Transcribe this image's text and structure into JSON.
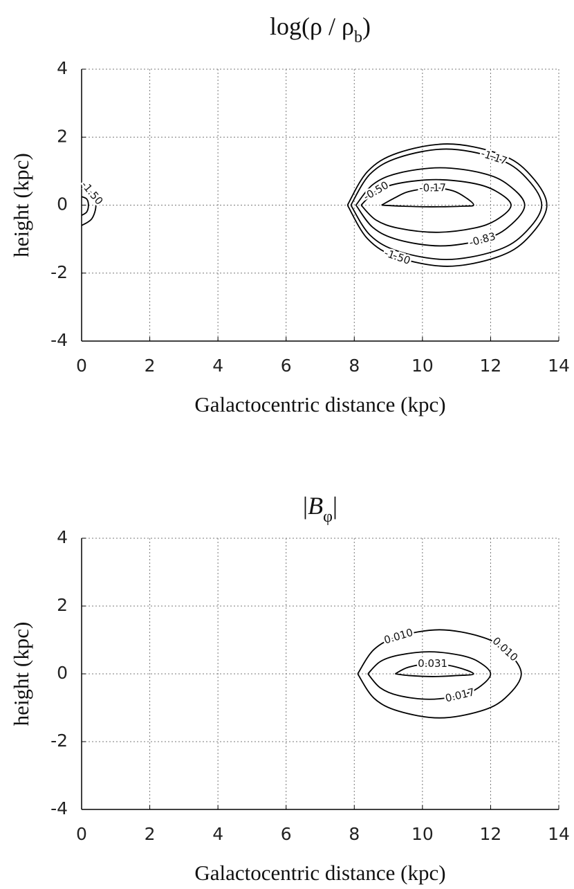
{
  "chart_data": [
    {
      "type": "contour",
      "title": [
        "log(ρ / ρ",
        "b",
        ")"
      ],
      "xlabel": "Galactocentric distance (kpc)",
      "ylabel": "height (kpc)",
      "xlim": [
        0,
        14
      ],
      "ylim": [
        -4,
        4
      ],
      "xticks": [
        0,
        2,
        4,
        6,
        8,
        10,
        12,
        14
      ],
      "yticks": [
        -4,
        -2,
        0,
        2,
        4
      ],
      "grid": true,
      "color": "#000000",
      "contours": [
        {
          "level": -1.5,
          "label": "-1.50",
          "x": [
            7.8,
            8.39,
            9.26,
            10.73,
            12.19,
            13.07,
            13.65,
            13.07,
            12.19,
            10.73,
            9.26,
            8.39,
            7.8
          ],
          "y": [
            0,
            0.99,
            1.53,
            1.8,
            1.53,
            0.99,
            0,
            -0.99,
            -1.53,
            -1.8,
            -1.53,
            -0.99,
            0
          ]
        },
        {
          "level": -1.17,
          "label": "-1.17",
          "x": [
            7.9,
            8.46,
            9.3,
            10.7,
            12.1,
            12.94,
            13.5,
            12.94,
            12.1,
            10.7,
            9.3,
            8.46,
            7.9
          ],
          "y": [
            0,
            0.91,
            1.4,
            1.65,
            1.4,
            0.91,
            0,
            -0.88,
            -1.36,
            -1.6,
            -1.36,
            -0.88,
            0
          ]
        },
        {
          "level": -0.83,
          "label": "-0.83",
          "x": [
            8.05,
            8.55,
            9.29,
            10.53,
            11.76,
            12.5,
            13.0,
            12.5,
            11.76,
            10.53,
            9.29,
            8.55,
            8.05
          ],
          "y": [
            0,
            0.61,
            0.94,
            1.1,
            0.94,
            0.61,
            0,
            -0.66,
            -1.02,
            -1.2,
            -1.02,
            -0.66,
            0
          ]
        },
        {
          "level": -0.5,
          "label": "-0.50",
          "x": [
            8.2,
            8.64,
            9.3,
            10.4,
            11.5,
            12.16,
            12.6,
            12.16,
            11.5,
            10.4,
            9.3,
            8.64,
            8.2
          ],
          "y": [
            0,
            0.41,
            0.64,
            0.75,
            0.64,
            0.41,
            0,
            -0.44,
            -0.68,
            -0.8,
            -0.68,
            -0.44,
            0
          ]
        },
        {
          "level": -0.17,
          "label": "-0.17",
          "x": [
            8.8,
            9.2,
            9.6,
            10.3,
            10.9,
            11.3,
            11.5,
            11.2,
            10.3,
            9.4,
            8.8
          ],
          "y": [
            0,
            0.22,
            0.4,
            0.5,
            0.42,
            0.2,
            0,
            -0.03,
            -0.05,
            -0.03,
            0
          ]
        },
        {
          "level": -1.5,
          "label": "-1.50",
          "x": [
            0,
            0.3,
            0.42,
            0.3,
            0
          ],
          "y": [
            0.5,
            0.35,
            0,
            -0.4,
            -0.6
          ]
        },
        {
          "level": -1.17,
          "label": null,
          "x": [
            0,
            0.15,
            0.2,
            0.15,
            0
          ],
          "y": [
            0.25,
            0.18,
            0,
            -0.2,
            -0.3
          ]
        }
      ]
    },
    {
      "type": "contour",
      "title": [
        "|",
        "B",
        "φ",
        "|"
      ],
      "xlabel": "Galactocentric distance (kpc)",
      "ylabel": "height (kpc)",
      "xlim": [
        0,
        14
      ],
      "ylim": [
        -4,
        4
      ],
      "xticks": [
        0,
        2,
        4,
        6,
        8,
        10,
        12,
        14
      ],
      "yticks": [
        -4,
        -2,
        0,
        2,
        4
      ],
      "grid": true,
      "color": "#000000",
      "contours": [
        {
          "level": 0.01,
          "label": "0.010",
          "x": [
            8.1,
            8.58,
            9.3,
            10.5,
            11.7,
            12.42,
            12.9,
            12.42,
            11.7,
            10.5,
            9.3,
            8.58,
            8.1
          ],
          "y": [
            0,
            0.72,
            1.1,
            1.3,
            1.1,
            0.72,
            0,
            -0.72,
            -1.1,
            -1.3,
            -1.1,
            -0.72,
            0
          ]
        },
        {
          "level": 0.017,
          "label": "0.017",
          "x": [
            8.4,
            8.76,
            9.3,
            10.2,
            11.1,
            11.64,
            12.0,
            11.64,
            11.1,
            10.2,
            9.3,
            8.76,
            8.4
          ],
          "y": [
            0,
            0.36,
            0.55,
            0.65,
            0.55,
            0.36,
            0,
            -0.41,
            -0.64,
            -0.75,
            -0.64,
            -0.41,
            0
          ]
        },
        {
          "level": 0.031,
          "label": "0.031",
          "x": [
            9.2,
            9.6,
            10.3,
            11.0,
            11.5,
            11.0,
            10.3,
            9.6,
            9.2
          ],
          "y": [
            0,
            0.2,
            0.3,
            0.2,
            0,
            -0.05,
            -0.08,
            -0.05,
            0
          ]
        }
      ]
    }
  ]
}
